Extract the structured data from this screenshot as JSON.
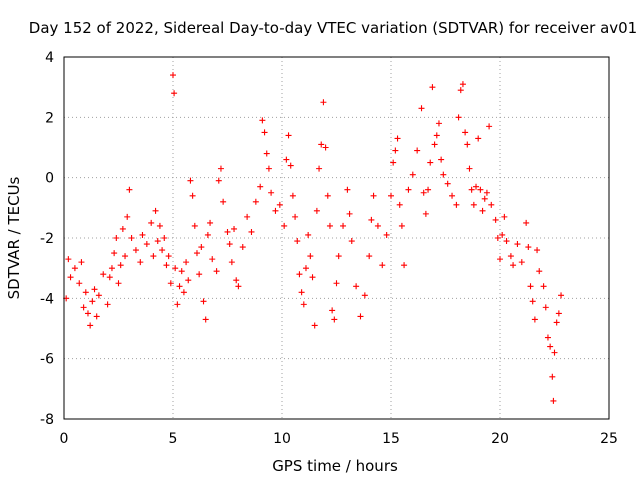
{
  "chart_data": {
    "type": "scatter",
    "title": "Day 152 of 2022, Sidereal Day-to-day VTEC variation (SDTVAR) for receiver av01",
    "xlabel": "GPS time / hours",
    "ylabel": "SDTVAR / TECUs",
    "xlim": [
      0,
      25
    ],
    "ylim": [
      -8,
      4
    ],
    "xticks": [
      "0",
      "5",
      "10",
      "15",
      "20",
      "25"
    ],
    "yticks": [
      "-8",
      "-6",
      "-4",
      "-2",
      "0",
      "2",
      "4"
    ],
    "grid": true,
    "marker": "+",
    "series": [
      {
        "name": "SDTVAR",
        "color": "#ff0000",
        "points": [
          [
            0.1,
            -4.0
          ],
          [
            0.2,
            -2.7
          ],
          [
            0.3,
            -3.3
          ],
          [
            0.5,
            -3.0
          ],
          [
            0.7,
            -3.5
          ],
          [
            0.8,
            -2.8
          ],
          [
            0.9,
            -4.3
          ],
          [
            1.0,
            -3.8
          ],
          [
            1.1,
            -4.5
          ],
          [
            1.2,
            -4.9
          ],
          [
            1.3,
            -4.1
          ],
          [
            1.4,
            -3.7
          ],
          [
            1.5,
            -4.6
          ],
          [
            1.6,
            -3.9
          ],
          [
            1.8,
            -3.2
          ],
          [
            2.0,
            -4.2
          ],
          [
            2.1,
            -3.3
          ],
          [
            2.2,
            -3.0
          ],
          [
            2.3,
            -2.5
          ],
          [
            2.4,
            -2.0
          ],
          [
            2.5,
            -3.5
          ],
          [
            2.6,
            -2.9
          ],
          [
            2.7,
            -1.7
          ],
          [
            2.8,
            -2.6
          ],
          [
            2.9,
            -1.3
          ],
          [
            3.0,
            -0.4
          ],
          [
            3.1,
            -2.0
          ],
          [
            3.3,
            -2.4
          ],
          [
            3.5,
            -2.8
          ],
          [
            3.6,
            -1.9
          ],
          [
            3.8,
            -2.2
          ],
          [
            4.0,
            -1.5
          ],
          [
            4.1,
            -2.6
          ],
          [
            4.2,
            -1.1
          ],
          [
            4.3,
            -2.1
          ],
          [
            4.4,
            -1.6
          ],
          [
            4.5,
            -2.4
          ],
          [
            4.6,
            -2.0
          ],
          [
            4.7,
            -2.9
          ],
          [
            4.8,
            -2.6
          ],
          [
            4.9,
            -3.5
          ],
          [
            5.0,
            3.4
          ],
          [
            5.05,
            2.8
          ],
          [
            5.1,
            -3.0
          ],
          [
            5.2,
            -4.2
          ],
          [
            5.3,
            -3.6
          ],
          [
            5.4,
            -3.1
          ],
          [
            5.5,
            -3.8
          ],
          [
            5.6,
            -2.8
          ],
          [
            5.7,
            -3.4
          ],
          [
            5.8,
            -0.1
          ],
          [
            5.9,
            -0.6
          ],
          [
            6.0,
            -1.6
          ],
          [
            6.1,
            -2.5
          ],
          [
            6.2,
            -3.2
          ],
          [
            6.3,
            -2.3
          ],
          [
            6.4,
            -4.1
          ],
          [
            6.5,
            -4.7
          ],
          [
            6.6,
            -1.9
          ],
          [
            6.7,
            -1.5
          ],
          [
            6.8,
            -2.7
          ],
          [
            7.0,
            -3.1
          ],
          [
            7.1,
            -0.1
          ],
          [
            7.2,
            0.3
          ],
          [
            7.3,
            -0.8
          ],
          [
            7.5,
            -1.8
          ],
          [
            7.6,
            -2.2
          ],
          [
            7.7,
            -2.8
          ],
          [
            7.8,
            -1.7
          ],
          [
            7.9,
            -3.4
          ],
          [
            8.0,
            -3.6
          ],
          [
            8.2,
            -2.3
          ],
          [
            8.4,
            -1.3
          ],
          [
            8.6,
            -1.8
          ],
          [
            8.8,
            -0.8
          ],
          [
            9.0,
            -0.3
          ],
          [
            9.1,
            1.9
          ],
          [
            9.2,
            1.5
          ],
          [
            9.3,
            0.8
          ],
          [
            9.4,
            0.3
          ],
          [
            9.5,
            -0.5
          ],
          [
            9.7,
            -1.1
          ],
          [
            9.9,
            -0.9
          ],
          [
            10.1,
            -1.6
          ],
          [
            10.2,
            0.6
          ],
          [
            10.3,
            1.4
          ],
          [
            10.4,
            0.4
          ],
          [
            10.5,
            -0.6
          ],
          [
            10.6,
            -1.3
          ],
          [
            10.7,
            -2.1
          ],
          [
            10.8,
            -3.2
          ],
          [
            10.9,
            -3.8
          ],
          [
            11.0,
            -4.2
          ],
          [
            11.1,
            -3.0
          ],
          [
            11.2,
            -1.9
          ],
          [
            11.3,
            -2.6
          ],
          [
            11.4,
            -3.3
          ],
          [
            11.5,
            -4.9
          ],
          [
            11.6,
            -1.1
          ],
          [
            11.7,
            0.3
          ],
          [
            11.8,
            1.1
          ],
          [
            11.9,
            2.5
          ],
          [
            12.0,
            1.0
          ],
          [
            12.1,
            -0.6
          ],
          [
            12.2,
            -1.6
          ],
          [
            12.3,
            -4.4
          ],
          [
            12.4,
            -4.7
          ],
          [
            12.5,
            -3.5
          ],
          [
            12.6,
            -2.6
          ],
          [
            12.8,
            -1.6
          ],
          [
            13.0,
            -0.4
          ],
          [
            13.1,
            -1.2
          ],
          [
            13.2,
            -2.1
          ],
          [
            13.4,
            -3.6
          ],
          [
            13.6,
            -4.6
          ],
          [
            13.8,
            -3.9
          ],
          [
            14.0,
            -2.6
          ],
          [
            14.1,
            -1.4
          ],
          [
            14.2,
            -0.6
          ],
          [
            14.4,
            -1.6
          ],
          [
            14.6,
            -2.9
          ],
          [
            14.8,
            -1.9
          ],
          [
            15.0,
            -0.6
          ],
          [
            15.1,
            0.5
          ],
          [
            15.2,
            0.9
          ],
          [
            15.3,
            1.3
          ],
          [
            15.4,
            -0.9
          ],
          [
            15.5,
            -1.6
          ],
          [
            15.6,
            -2.9
          ],
          [
            15.8,
            -0.4
          ],
          [
            16.0,
            0.1
          ],
          [
            16.2,
            0.9
          ],
          [
            16.4,
            2.3
          ],
          [
            16.5,
            -0.5
          ],
          [
            16.6,
            -1.2
          ],
          [
            16.7,
            -0.4
          ],
          [
            16.8,
            0.5
          ],
          [
            16.9,
            3.0
          ],
          [
            17.0,
            1.1
          ],
          [
            17.1,
            1.4
          ],
          [
            17.2,
            1.8
          ],
          [
            17.3,
            0.6
          ],
          [
            17.4,
            0.1
          ],
          [
            17.6,
            -0.2
          ],
          [
            17.8,
            -0.6
          ],
          [
            18.0,
            -0.9
          ],
          [
            18.1,
            2.0
          ],
          [
            18.2,
            2.9
          ],
          [
            18.3,
            3.1
          ],
          [
            18.4,
            1.5
          ],
          [
            18.5,
            1.1
          ],
          [
            18.6,
            0.3
          ],
          [
            18.7,
            -0.4
          ],
          [
            18.8,
            -0.9
          ],
          [
            18.9,
            -0.3
          ],
          [
            19.0,
            1.3
          ],
          [
            19.1,
            -0.4
          ],
          [
            19.2,
            -1.1
          ],
          [
            19.3,
            -0.7
          ],
          [
            19.4,
            -0.5
          ],
          [
            19.5,
            1.7
          ],
          [
            19.6,
            -0.9
          ],
          [
            19.8,
            -1.4
          ],
          [
            19.9,
            -2.0
          ],
          [
            20.0,
            -2.7
          ],
          [
            20.1,
            -1.9
          ],
          [
            20.2,
            -1.3
          ],
          [
            20.3,
            -2.1
          ],
          [
            20.5,
            -2.6
          ],
          [
            20.6,
            -2.9
          ],
          [
            20.8,
            -2.2
          ],
          [
            21.0,
            -2.8
          ],
          [
            21.2,
            -1.5
          ],
          [
            21.3,
            -2.3
          ],
          [
            21.4,
            -3.6
          ],
          [
            21.5,
            -4.1
          ],
          [
            21.6,
            -4.7
          ],
          [
            21.7,
            -2.4
          ],
          [
            21.8,
            -3.1
          ],
          [
            22.0,
            -3.6
          ],
          [
            22.1,
            -4.3
          ],
          [
            22.2,
            -5.3
          ],
          [
            22.3,
            -5.6
          ],
          [
            22.4,
            -6.6
          ],
          [
            22.45,
            -7.4
          ],
          [
            22.5,
            -5.8
          ],
          [
            22.6,
            -4.8
          ],
          [
            22.7,
            -4.5
          ],
          [
            22.8,
            -3.9
          ]
        ]
      }
    ]
  }
}
